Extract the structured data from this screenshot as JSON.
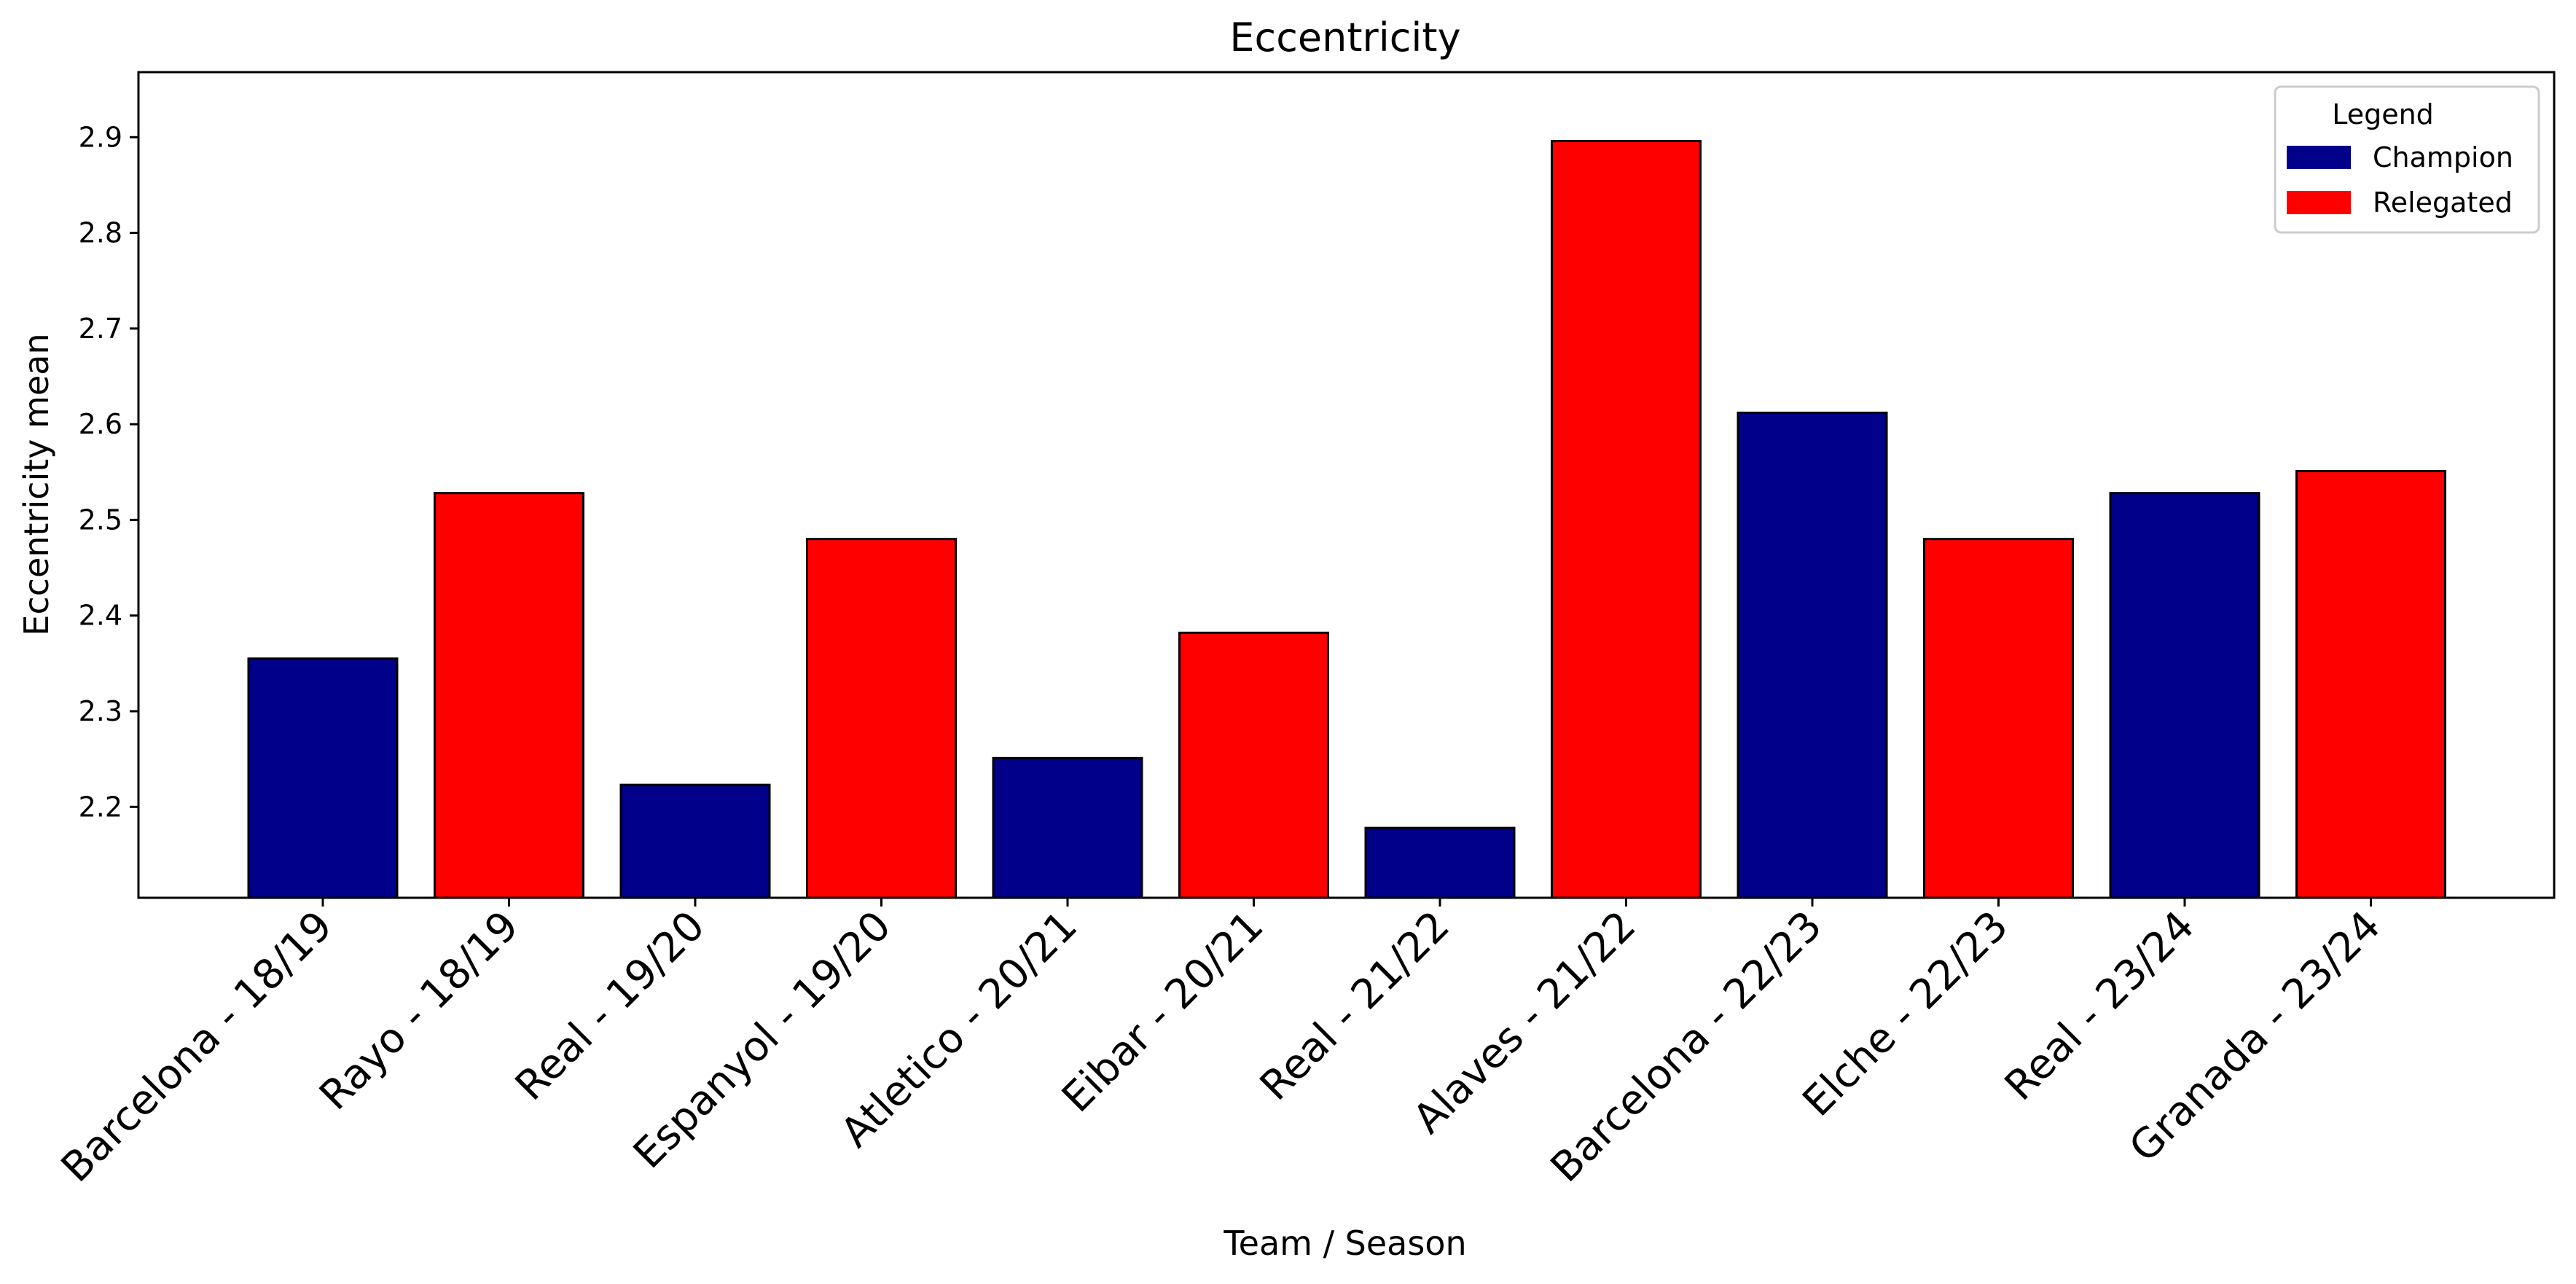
{
  "chart_data": {
    "type": "bar",
    "title": "Eccentricity",
    "xlabel": "Team / Season",
    "ylabel": "Eccentricity mean",
    "categories": [
      "Barcelona - 18/19",
      "Rayo - 18/19",
      "Real - 19/20",
      "Espanyol - 19/20",
      "Atletico - 20/21",
      "Eibar - 20/21",
      "Real - 21/22",
      "Alaves - 21/22",
      "Barcelona - 22/23",
      "Elche - 22/23",
      "Real - 23/24",
      "Granada - 23/24"
    ],
    "values": [
      2.355,
      2.528,
      2.223,
      2.48,
      2.251,
      2.382,
      2.178,
      2.896,
      2.612,
      2.48,
      2.528,
      2.551
    ],
    "groups": [
      "Champion",
      "Relegated",
      "Champion",
      "Relegated",
      "Champion",
      "Relegated",
      "Champion",
      "Relegated",
      "Champion",
      "Relegated",
      "Champion",
      "Relegated"
    ],
    "ylim": [
      2.105,
      2.968
    ],
    "yticks": [
      "2.2",
      "2.3",
      "2.4",
      "2.5",
      "2.6",
      "2.7",
      "2.8",
      "2.9"
    ],
    "ytick_values": [
      2.2,
      2.3,
      2.4,
      2.5,
      2.6,
      2.7,
      2.8,
      2.9
    ],
    "grid": false,
    "legend": {
      "title": "Legend",
      "position": "top-right",
      "entries": [
        {
          "label": "Champion",
          "color": "#00008b"
        },
        {
          "label": "Relegated",
          "color": "#ff0000"
        }
      ]
    },
    "colors": {
      "Champion": "#00008b",
      "Relegated": "#ff0000"
    }
  }
}
